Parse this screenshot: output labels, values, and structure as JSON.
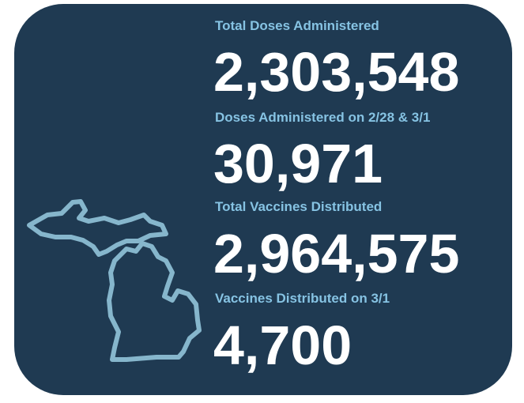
{
  "stats": [
    {
      "label": "Total Doses Administered",
      "value": "2,303,548"
    },
    {
      "label": "Doses Administered on 2/28 & 3/1",
      "value": "30,971"
    },
    {
      "label": "Total Vaccines Distributed",
      "value": "2,964,575"
    },
    {
      "label": "Vaccines Distributed on 3/1",
      "value": "4,700"
    }
  ]
}
